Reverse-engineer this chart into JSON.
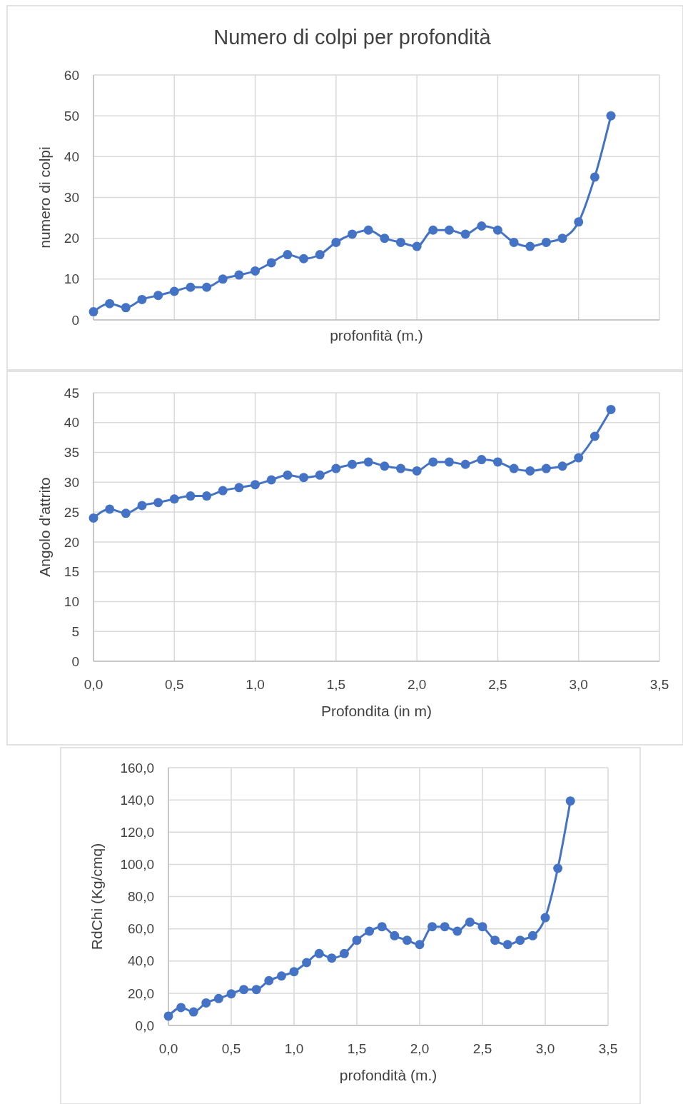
{
  "chart_data": [
    {
      "type": "line",
      "title": "Numero di colpi per profondità",
      "xlabel": "profonfità (m.)",
      "ylabel": "numero di colpi",
      "x": [
        0,
        0.1,
        0.2,
        0.3,
        0.4,
        0.5,
        0.6,
        0.7,
        0.8,
        0.9,
        1.0,
        1.1,
        1.2,
        1.3,
        1.4,
        1.5,
        1.6,
        1.7,
        1.8,
        1.9,
        2.0,
        2.1,
        2.2,
        2.3,
        2.4,
        2.5,
        2.6,
        2.7,
        2.8,
        2.9,
        3.0,
        3.1,
        3.2
      ],
      "series": [
        {
          "color": "#4472c4",
          "values": [
            2,
            4,
            3,
            5,
            6,
            7,
            8,
            8,
            10,
            11,
            12,
            14,
            16,
            15,
            16,
            19,
            21,
            22,
            20,
            19,
            18,
            22,
            22,
            21,
            23,
            22,
            19,
            18,
            19,
            20,
            24,
            35,
            50
          ]
        }
      ],
      "xlim": [
        0,
        3.5
      ],
      "xticks": [
        {
          "value": 0,
          "label": null
        },
        {
          "value": 0.5,
          "label": null
        },
        {
          "value": 1,
          "label": null
        },
        {
          "value": 1.5,
          "label": null
        },
        {
          "value": 2,
          "label": null
        },
        {
          "value": 2.5,
          "label": null
        },
        {
          "value": 3,
          "label": null
        },
        {
          "value": 3.5,
          "label": null
        }
      ],
      "ylim": [
        0,
        60
      ],
      "yticks": [
        0,
        10,
        20,
        30,
        40,
        50,
        60
      ],
      "tick_labels": "y",
      "grid": true,
      "marker": "circle",
      "line_style": "solid"
    },
    {
      "type": "line",
      "xlabel": "Profondita (in m)",
      "ylabel": "Angolo d'attrito",
      "x": [
        0,
        0.1,
        0.2,
        0.3,
        0.4,
        0.5,
        0.6,
        0.7,
        0.8,
        0.9,
        1.0,
        1.1,
        1.2,
        1.3,
        1.4,
        1.5,
        1.6,
        1.7,
        1.8,
        1.9,
        2.0,
        2.1,
        2.2,
        2.3,
        2.4,
        2.5,
        2.6,
        2.7,
        2.8,
        2.9,
        3.0,
        3.1,
        3.2
      ],
      "series": [
        {
          "color": "#4472c4",
          "values": [
            24,
            25.5,
            24.8,
            26.1,
            26.6,
            27.2,
            27.7,
            27.7,
            28.6,
            29.1,
            29.6,
            30.4,
            31.2,
            30.8,
            31.2,
            32.3,
            33,
            33.4,
            32.7,
            32.3,
            31.9,
            33.4,
            33.4,
            33,
            33.8,
            33.4,
            32.3,
            31.9,
            32.3,
            32.7,
            34.1,
            37.7,
            42.2
          ]
        }
      ],
      "xlim": [
        0,
        3.5
      ],
      "xticks": [
        {
          "value": 0,
          "label": "0,0"
        },
        {
          "value": 0.5,
          "label": "0,5"
        },
        {
          "value": 1,
          "label": "1,0"
        },
        {
          "value": 1.5,
          "label": "1,5"
        },
        {
          "value": 2,
          "label": "2,0"
        },
        {
          "value": 2.5,
          "label": "2,5"
        },
        {
          "value": 3,
          "label": "3,0"
        },
        {
          "value": 3.5,
          "label": "3,5"
        }
      ],
      "ylim": [
        0,
        45
      ],
      "yticks": [
        0,
        5,
        10,
        15,
        20,
        25,
        30,
        35,
        40,
        45
      ],
      "grid": true,
      "marker": "circle",
      "line_style": "solid"
    },
    {
      "type": "line",
      "xlabel": "profondità (m.)",
      "ylabel": "RdChi  (Kg/cmq)",
      "x": [
        0,
        0.1,
        0.2,
        0.3,
        0.4,
        0.5,
        0.6,
        0.7,
        0.8,
        0.9,
        1.0,
        1.1,
        1.2,
        1.3,
        1.4,
        1.5,
        1.6,
        1.7,
        1.8,
        1.9,
        2.0,
        2.1,
        2.2,
        2.3,
        2.4,
        2.5,
        2.6,
        2.7,
        2.8,
        2.9,
        3.0,
        3.1,
        3.2
      ],
      "series": [
        {
          "color": "#4472c4",
          "values": [
            5.8,
            11.1,
            8.4,
            14,
            16.7,
            19.6,
            22.3,
            22.3,
            27.8,
            30.7,
            33.4,
            39,
            44.6,
            41.8,
            44.6,
            52.9,
            58.5,
            61.3,
            55.7,
            52.9,
            50.2,
            61.3,
            61.3,
            58.5,
            64.1,
            61.3,
            52.9,
            50.2,
            52.9,
            55.7,
            66.9,
            97.5,
            139.3
          ]
        }
      ],
      "xlim": [
        0,
        3.5
      ],
      "xticks": [
        {
          "value": 0,
          "label": "0,0"
        },
        {
          "value": 0.5,
          "label": "0,5"
        },
        {
          "value": 1,
          "label": "1,0"
        },
        {
          "value": 1.5,
          "label": "1,5"
        },
        {
          "value": 2,
          "label": "2,0"
        },
        {
          "value": 2.5,
          "label": "2,5"
        },
        {
          "value": 3,
          "label": "3,0"
        },
        {
          "value": 3.5,
          "label": "3,5"
        }
      ],
      "ylim": [
        0,
        160
      ],
      "yticks": [
        {
          "value": 0,
          "label": "0,0"
        },
        {
          "value": 20,
          "label": "20,0"
        },
        {
          "value": 40,
          "label": "40,0"
        },
        {
          "value": 60,
          "label": "60,0"
        },
        {
          "value": 80,
          "label": "80,0"
        },
        {
          "value": 100,
          "label": "100,0"
        },
        {
          "value": 120,
          "label": "120,0"
        },
        {
          "value": 140,
          "label": "140,0"
        },
        {
          "value": 160,
          "label": "160,0"
        }
      ],
      "grid": true,
      "marker": "circle",
      "line_style": "solid"
    }
  ]
}
